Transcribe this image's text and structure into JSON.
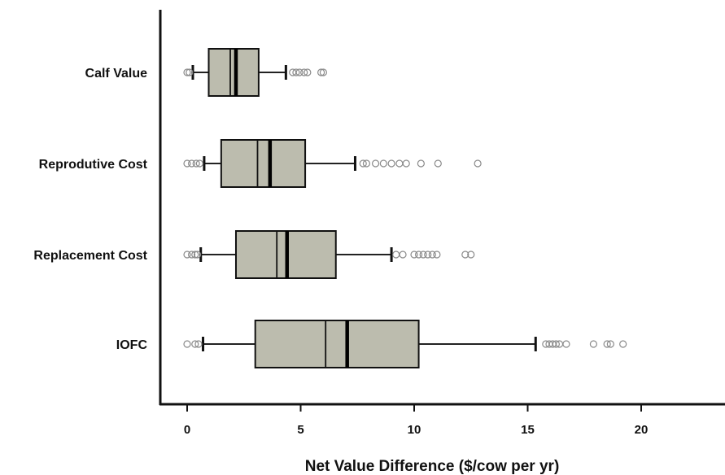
{
  "chart_data": {
    "type": "boxplot",
    "orientation": "horizontal",
    "xlabel": "Net Value Difference ($/cow per yr)",
    "xlim": [
      -1.2,
      23.8
    ],
    "xticks": [
      0,
      5,
      10,
      15,
      20
    ],
    "tick_labels": [
      "0",
      "5",
      "10",
      "15",
      "20"
    ],
    "grid": false,
    "box_color": "#bcbcae",
    "series": [
      {
        "name": "Calf Value",
        "whisker_low": 0.25,
        "q1": 0.95,
        "mean": 1.9,
        "median": 2.15,
        "q3": 3.15,
        "whisker_high": 4.35,
        "outliers": [
          0,
          0.1,
          4.65,
          4.8,
          4.95,
          5.15,
          5.3,
          5.9,
          6.0
        ]
      },
      {
        "name": "Reprodutive Cost",
        "whisker_low": 0.75,
        "q1": 1.5,
        "mean": 3.1,
        "median": 3.65,
        "q3": 5.2,
        "whisker_high": 7.4,
        "outliers": [
          0,
          0.2,
          0.4,
          0.55,
          7.75,
          7.9,
          8.3,
          8.65,
          9.0,
          9.35,
          9.65,
          10.3,
          11.05,
          12.8
        ]
      },
      {
        "name": "Replacement Cost",
        "whisker_low": 0.6,
        "q1": 2.15,
        "mean": 3.95,
        "median": 4.4,
        "q3": 6.55,
        "whisker_high": 9.0,
        "outliers": [
          0,
          0.2,
          0.35,
          0.45,
          9.2,
          9.5,
          10.0,
          10.2,
          10.4,
          10.6,
          10.8,
          11.0,
          12.25,
          12.5
        ]
      },
      {
        "name": "IOFC",
        "whisker_low": 0.7,
        "q1": 3.0,
        "mean": 6.1,
        "median": 7.05,
        "q3": 10.2,
        "whisker_high": 15.35,
        "outliers": [
          0,
          0.35,
          0.5,
          15.8,
          15.95,
          16.1,
          16.25,
          16.4,
          16.7,
          17.9,
          18.5,
          18.65,
          19.2
        ]
      }
    ]
  }
}
